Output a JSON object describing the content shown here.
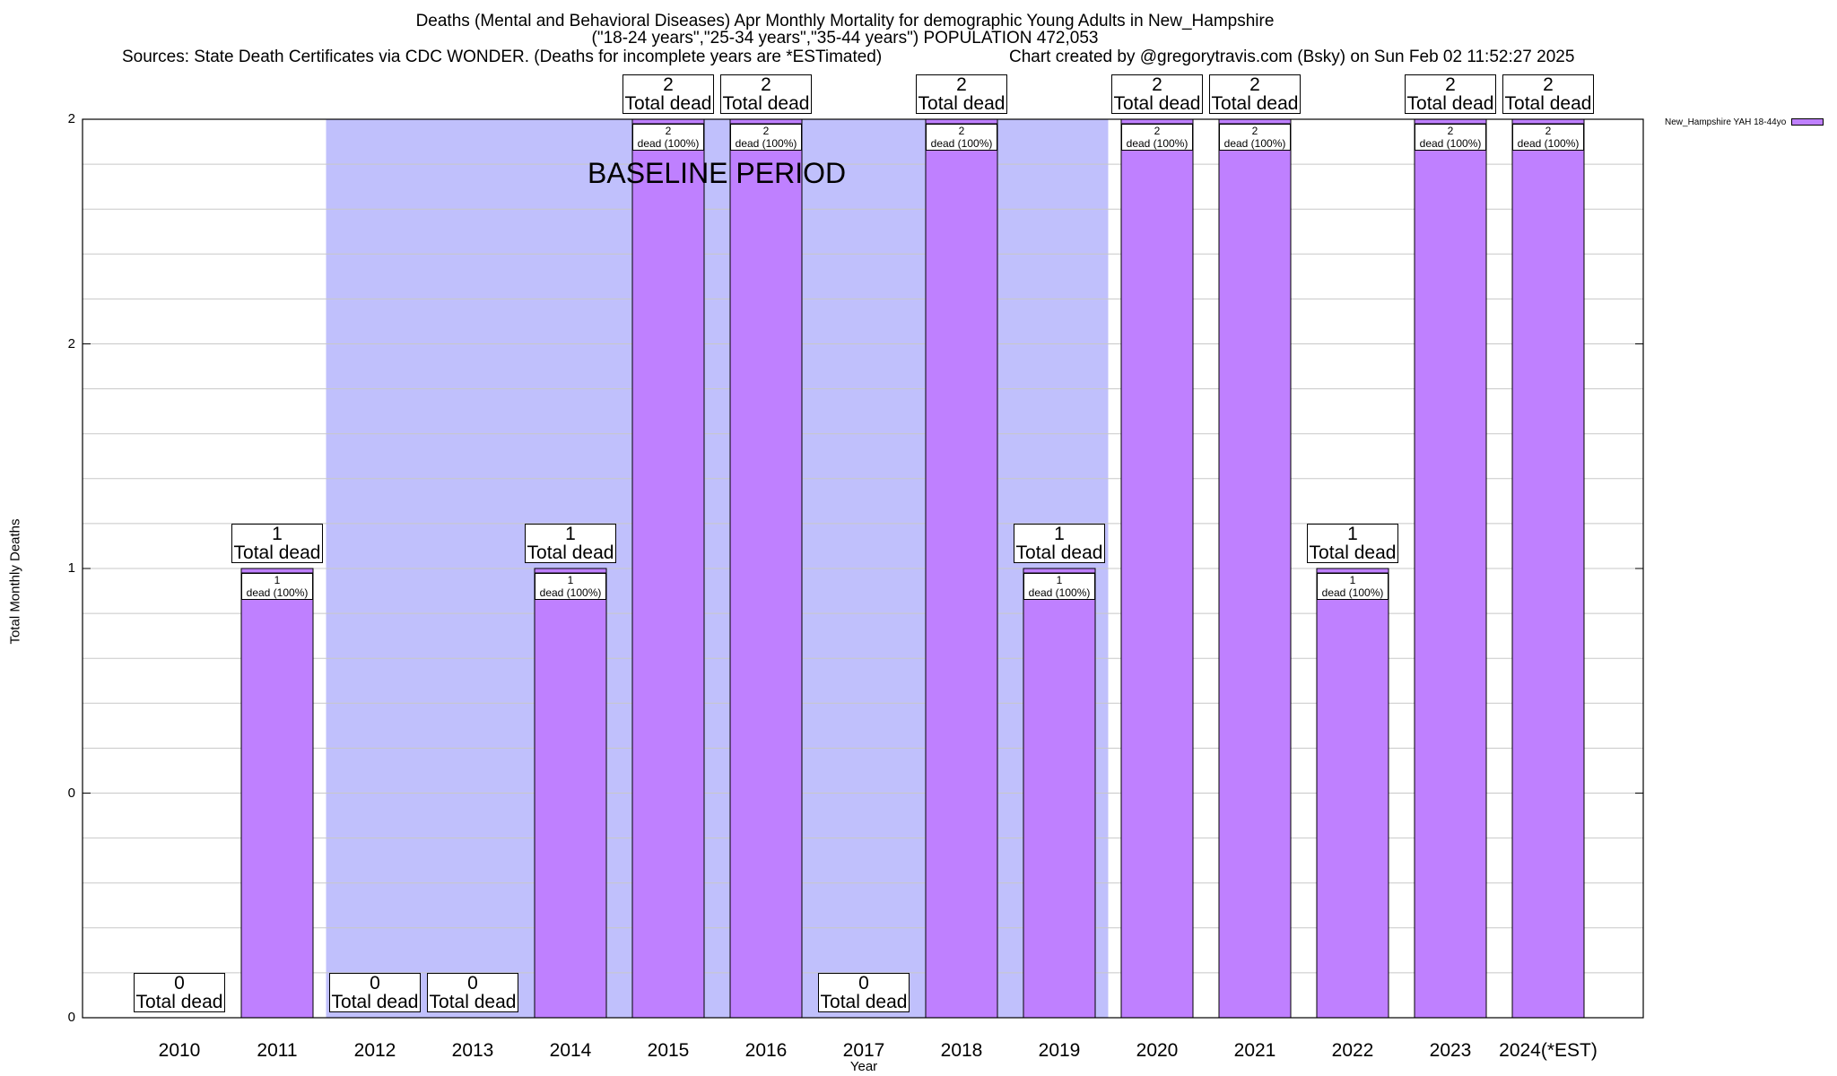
{
  "title": {
    "line1": "Deaths (Mental and Behavioral Diseases) Apr Monthly Mortality for demographic Young Adults in New_Hampshire",
    "line2": "(\"18-24 years\",\"25-34 years\",\"35-44 years\") POPULATION 472,053",
    "line3_left": "Sources: State Death Certificates via CDC WONDER. (Deaths for incomplete years are *ESTimated)",
    "line3_right": "Chart created by @gregorytravis.com (Bsky) on Sun Feb 02 11:52:27 2025"
  },
  "chart_data": {
    "type": "bar",
    "title": "Deaths (Mental and Behavioral Diseases) Apr Monthly Mortality for demographic Young Adults in New_Hampshire",
    "xlabel": "Year",
    "ylabel": "Total Monthly Deaths",
    "categories": [
      "2010",
      "2011",
      "2012",
      "2013",
      "2014",
      "2015",
      "2016",
      "2017",
      "2018",
      "2019",
      "2020",
      "2021",
      "2022",
      "2023",
      "2024(*EST)"
    ],
    "series": [
      {
        "name": "New_Hampshire YAH 18-44yo",
        "values": [
          0,
          1,
          0,
          0,
          1,
          2,
          2,
          0,
          2,
          1,
          2,
          2,
          1,
          2,
          2
        ],
        "color": "#bf80ff"
      }
    ],
    "total_labels": [
      {
        "value": "0",
        "text": "Total dead"
      },
      {
        "value": "1",
        "text": "Total dead"
      },
      {
        "value": "0",
        "text": "Total dead"
      },
      {
        "value": "0",
        "text": "Total dead"
      },
      {
        "value": "1",
        "text": "Total dead"
      },
      {
        "value": "2",
        "text": "Total dead"
      },
      {
        "value": "2",
        "text": "Total dead"
      },
      {
        "value": "0",
        "text": "Total dead"
      },
      {
        "value": "2",
        "text": "Total dead"
      },
      {
        "value": "1",
        "text": "Total dead"
      },
      {
        "value": "2",
        "text": "Total dead"
      },
      {
        "value": "2",
        "text": "Total dead"
      },
      {
        "value": "1",
        "text": "Total dead"
      },
      {
        "value": "2",
        "text": "Total dead"
      },
      {
        "value": "2",
        "text": "Total dead"
      }
    ],
    "segment_labels": [
      "",
      "1\ndead (100%)",
      "",
      "",
      "1\ndead (100%)",
      "2\ndead (100%)",
      "2\ndead (100%)",
      "",
      "2\ndead (100%)",
      "1\ndead (100%)",
      "2\ndead (100%)",
      "2\ndead (100%)",
      "1\ndead (100%)",
      "2\ndead (100%)",
      "2\ndead (100%)"
    ],
    "ylim": [
      0,
      2
    ],
    "ytick_labels": [
      "0",
      "0",
      "1",
      "2",
      "2"
    ],
    "ytick_values": [
      0,
      0.5,
      1,
      1.5,
      2
    ],
    "grid": true,
    "legend_placement": "top-right outside",
    "baseline_period": {
      "label": "BASELINE PERIOD",
      "from": "2012",
      "to": "2019",
      "color": "#c0c0fc"
    }
  }
}
